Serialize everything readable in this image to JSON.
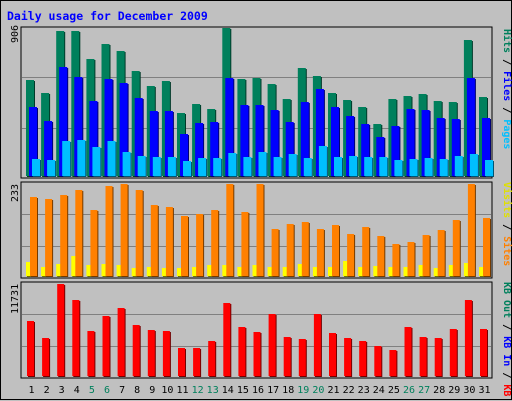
{
  "chart_data": [
    {
      "type": "bar",
      "title": "Daily usage for December 2009",
      "categories": [
        "1",
        "2",
        "3",
        "4",
        "5",
        "6",
        "7",
        "8",
        "9",
        "10",
        "11",
        "12",
        "13",
        "14",
        "15",
        "16",
        "17",
        "18",
        "19",
        "20",
        "21",
        "22",
        "23",
        "24",
        "25",
        "26",
        "27",
        "28",
        "29",
        "30",
        "31"
      ],
      "weekend_days": [
        "5",
        "6",
        "12",
        "13",
        "19",
        "20",
        "26",
        "27"
      ],
      "ymax_label": "906",
      "ylim": [
        0,
        906
      ],
      "legend": [
        "Pages",
        "Files",
        "Hits"
      ],
      "series": [
        {
          "name": "Hits",
          "color": "#00805c",
          "values": [
            588,
            507,
            888,
            888,
            718,
            807,
            763,
            645,
            549,
            581,
            386,
            443,
            409,
            906,
            592,
            597,
            564,
            474,
            659,
            611,
            509,
            465,
            425,
            316,
            470,
            489,
            500,
            459,
            455,
            832,
            481
          ]
        },
        {
          "name": "Files",
          "color": "#0000ff",
          "values": [
            424,
            338,
            669,
            603,
            459,
            592,
            567,
            478,
            398,
            400,
            260,
            322,
            333,
            599,
            435,
            437,
            406,
            329,
            451,
            534,
            422,
            368,
            320,
            237,
            307,
            409,
            405,
            358,
            349,
            601,
            357
          ]
        },
        {
          "name": "Pages",
          "color": "#00bfff",
          "values": [
            106,
            95,
            212,
            221,
            180,
            216,
            148,
            122,
            114,
            119,
            91,
            112,
            110,
            141,
            114,
            147,
            115,
            135,
            110,
            182,
            115,
            124,
            117,
            115,
            100,
            106,
            108,
            105,
            125,
            137,
            95
          ]
        }
      ]
    },
    {
      "type": "bar",
      "ymax_label": "233",
      "ylim": [
        0,
        233
      ],
      "legend": [
        "Visits",
        "Sites"
      ],
      "series": [
        {
          "name": "Sites",
          "color": "#ff8000",
          "values": [
            199,
            196,
            206,
            219,
            167,
            229,
            233,
            218,
            180,
            174,
            153,
            157,
            168,
            233,
            163,
            233,
            120,
            131,
            136,
            120,
            129,
            107,
            125,
            101,
            80,
            85,
            103,
            117,
            142,
            233,
            146
          ]
        },
        {
          "name": "Visits",
          "color": "#ffff00",
          "values": [
            35,
            24,
            30,
            51,
            28,
            30,
            28,
            21,
            24,
            21,
            19,
            22,
            27,
            27,
            22,
            29,
            23,
            22,
            30,
            22,
            24,
            37,
            24,
            25,
            24,
            24,
            27,
            21,
            27,
            32,
            23
          ]
        }
      ]
    },
    {
      "type": "bar",
      "ymax_label": "11731",
      "ylim": [
        0,
        11731
      ],
      "legend": [
        "KB F",
        "KB In",
        "KB Out"
      ],
      "series": [
        {
          "name": "KB F",
          "color": "#ff0000",
          "values": [
            7030,
            4873,
            11731,
            9643,
            5785,
            7605,
            8634,
            6505,
            5839,
            5785,
            3567,
            3567,
            4493,
            9369,
            6212,
            5620,
            7882,
            4988,
            4708,
            7845,
            5505,
            4873,
            4493,
            3796,
            3268,
            6212,
            4988,
            4873,
            6026,
            9643,
            6026
          ]
        }
      ]
    }
  ]
}
